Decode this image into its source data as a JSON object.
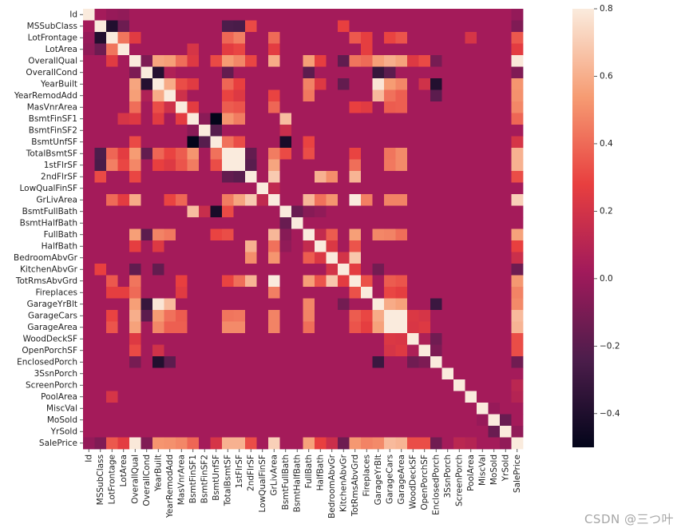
{
  "chart_data": {
    "type": "heatmap",
    "title": "",
    "variables": [
      "Id",
      "MSSubClass",
      "LotFrontage",
      "LotArea",
      "OverallQual",
      "OverallCond",
      "YearBuilt",
      "YearRemodAdd",
      "MasVnrArea",
      "BsmtFinSF1",
      "BsmtFinSF2",
      "BsmtUnfSF",
      "TotalBsmtSF",
      "1stFlrSF",
      "2ndFlrSF",
      "LowQualFinSF",
      "GrLivArea",
      "BsmtFullBath",
      "BsmtHalfBath",
      "FullBath",
      "HalfBath",
      "BedroomAbvGr",
      "KitchenAbvGr",
      "TotRmsAbvGrd",
      "Fireplaces",
      "GarageYrBlt",
      "GarageCars",
      "GarageArea",
      "WoodDeckSF",
      "OpenPorchSF",
      "EnclosedPorch",
      "3SsnPorch",
      "ScreenPorch",
      "PoolArea",
      "MiscVal",
      "MoSold",
      "YrSold",
      "SalePrice"
    ],
    "correlations": {
      "Id|LotFrontage": -0.01,
      "Id|LotArea": -0.03,
      "Id|SalePrice": -0.02,
      "MSSubClass|LotFrontage": -0.39,
      "MSSubClass|LotArea": -0.14,
      "MSSubClass|OverallQual": 0.03,
      "MSSubClass|YearBuilt": 0.03,
      "MSSubClass|TotalBsmtSF": -0.24,
      "MSSubClass|1stFlrSF": -0.25,
      "MSSubClass|2ndFlrSF": 0.31,
      "MSSubClass|KitchenAbvGr": 0.28,
      "MSSubClass|SalePrice": -0.08,
      "LotFrontage|LotArea": 0.43,
      "LotFrontage|OverallQual": 0.25,
      "LotFrontage|TotalBsmtSF": 0.39,
      "LotFrontage|1stFlrSF": 0.46,
      "LotFrontage|GrLivArea": 0.4,
      "LotFrontage|TotRmsAbvGrd": 0.35,
      "LotFrontage|Fireplaces": 0.27,
      "LotFrontage|GarageCars": 0.29,
      "LotFrontage|GarageArea": 0.34,
      "LotFrontage|PoolArea": 0.21,
      "LotFrontage|SalePrice": 0.35,
      "LotArea|BsmtFinSF1": 0.21,
      "LotArea|TotalBsmtSF": 0.26,
      "LotArea|1stFlrSF": 0.3,
      "LotArea|GrLivArea": 0.26,
      "LotArea|Fireplaces": 0.27,
      "LotArea|SalePrice": 0.26,
      "OverallQual|OverallCond": -0.09,
      "OverallQual|YearBuilt": 0.57,
      "OverallQual|YearRemodAdd": 0.55,
      "OverallQual|MasVnrArea": 0.41,
      "OverallQual|BsmtFinSF1": 0.24,
      "OverallQual|BsmtUnfSF": 0.31,
      "OverallQual|TotalBsmtSF": 0.54,
      "OverallQual|1stFlrSF": 0.48,
      "OverallQual|2ndFlrSF": 0.3,
      "OverallQual|GrLivArea": 0.59,
      "OverallQual|FullBath": 0.55,
      "OverallQual|HalfBath": 0.27,
      "OverallQual|KitchenAbvGr": -0.18,
      "OverallQual|TotRmsAbvGrd": 0.43,
      "OverallQual|Fireplaces": 0.4,
      "OverallQual|GarageYrBlt": 0.55,
      "OverallQual|GarageCars": 0.6,
      "OverallQual|GarageArea": 0.56,
      "OverallQual|WoodDeckSF": 0.24,
      "OverallQual|OpenPorchSF": 0.31,
      "OverallQual|EnclosedPorch": -0.11,
      "OverallQual|SalePrice": 0.79,
      "OverallCond|YearBuilt": -0.38,
      "OverallCond|YearRemodAdd": 0.07,
      "OverallCond|TotalBsmtSF": -0.17,
      "OverallCond|FullBath": -0.19,
      "OverallCond|GarageYrBlt": -0.32,
      "OverallCond|GarageCars": -0.19,
      "OverallCond|SalePrice": -0.08,
      "YearBuilt|YearRemodAdd": 0.59,
      "YearBuilt|MasVnrArea": 0.32,
      "YearBuilt|BsmtFinSF1": 0.25,
      "YearBuilt|TotalBsmtSF": 0.39,
      "YearBuilt|1stFlrSF": 0.28,
      "YearBuilt|FullBath": 0.47,
      "YearBuilt|HalfBath": 0.24,
      "YearBuilt|KitchenAbvGr": -0.17,
      "YearBuilt|GarageYrBlt": 0.78,
      "YearBuilt|GarageCars": 0.54,
      "YearBuilt|GarageArea": 0.48,
      "YearBuilt|OpenPorchSF": 0.19,
      "YearBuilt|EnclosedPorch": -0.39,
      "YearBuilt|SalePrice": 0.52,
      "YearRemodAdd|MasVnrArea": 0.18,
      "YearRemodAdd|TotalBsmtSF": 0.29,
      "YearRemodAdd|1stFlrSF": 0.24,
      "YearRemodAdd|GrLivArea": 0.29,
      "YearRemodAdd|FullBath": 0.44,
      "YearRemodAdd|GarageYrBlt": 0.64,
      "YearRemodAdd|GarageCars": 0.42,
      "YearRemodAdd|GarageArea": 0.37,
      "YearRemodAdd|EnclosedPorch": -0.19,
      "YearRemodAdd|SalePrice": 0.51,
      "MasVnrArea|BsmtFinSF1": 0.26,
      "MasVnrArea|TotalBsmtSF": 0.36,
      "MasVnrArea|1stFlrSF": 0.34,
      "MasVnrArea|GrLivArea": 0.39,
      "MasVnrArea|TotRmsAbvGrd": 0.28,
      "MasVnrArea|Fireplaces": 0.25,
      "MasVnrArea|GarageCars": 0.36,
      "MasVnrArea|GarageArea": 0.37,
      "MasVnrArea|SalePrice": 0.48,
      "BsmtFinSF1|BsmtFinSF2": -0.05,
      "BsmtFinSF1|BsmtUnfSF": -0.5,
      "BsmtFinSF1|TotalBsmtSF": 0.52,
      "BsmtFinSF1|1stFlrSF": 0.45,
      "BsmtFinSF1|BsmtFullBath": 0.65,
      "BsmtFinSF1|SalePrice": 0.39,
      "BsmtFinSF2|BsmtUnfSF": -0.21,
      "BsmtFinSF2|BsmtFullBath": 0.16,
      "BsmtUnfSF|TotalBsmtSF": 0.42,
      "BsmtUnfSF|1stFlrSF": 0.32,
      "BsmtUnfSF|BsmtFullBath": -0.42,
      "BsmtUnfSF|FullBath": 0.29,
      "BsmtUnfSF|SalePrice": 0.21,
      "TotalBsmtSF|1stFlrSF": 0.82,
      "TotalBsmtSF|2ndFlrSF": -0.17,
      "TotalBsmtSF|GrLivArea": 0.45,
      "TotalBsmtSF|BsmtFullBath": 0.31,
      "TotalBsmtSF|FullBath": 0.32,
      "TotalBsmtSF|TotRmsAbvGrd": 0.29,
      "TotalBsmtSF|GarageCars": 0.43,
      "TotalBsmtSF|GarageArea": 0.49,
      "TotalBsmtSF|SalePrice": 0.61,
      "1stFlrSF|2ndFlrSF": -0.2,
      "1stFlrSF|GrLivArea": 0.57,
      "1stFlrSF|TotRmsAbvGrd": 0.41,
      "1stFlrSF|GarageCars": 0.44,
      "1stFlrSF|GarageArea": 0.49,
      "1stFlrSF|SalePrice": 0.61,
      "2ndFlrSF|GrLivArea": 0.69,
      "2ndFlrSF|HalfBath": 0.61,
      "2ndFlrSF|BedroomAbvGr": 0.5,
      "2ndFlrSF|TotRmsAbvGrd": 0.62,
      "2ndFlrSF|SalePrice": 0.32,
      "LowQualFinSF|GrLivArea": 0.13,
      "GrLivArea|FullBath": 0.63,
      "GrLivArea|HalfBath": 0.42,
      "GrLivArea|BedroomAbvGr": 0.52,
      "GrLivArea|TotRmsAbvGrd": 0.83,
      "GrLivArea|Fireplaces": 0.46,
      "GrLivArea|GarageCars": 0.47,
      "GrLivArea|GarageArea": 0.47,
      "GrLivArea|SalePrice": 0.71,
      "BsmtFullBath|BsmtHalfBath": -0.15,
      "BsmtFullBath|FullBath": -0.06,
      "BsmtFullBath|HalfBath": -0.03,
      "FullBath|HalfBath": 0.14,
      "FullBath|BedroomAbvGr": 0.36,
      "FullBath|TotRmsAbvGrd": 0.55,
      "FullBath|GarageYrBlt": 0.48,
      "FullBath|GarageCars": 0.47,
      "FullBath|GarageArea": 0.41,
      "FullBath|SalePrice": 0.56,
      "HalfBath|BedroomAbvGr": 0.23,
      "HalfBath|TotRmsAbvGrd": 0.34,
      "HalfBath|SalePrice": 0.28,
      "BedroomAbvGr|KitchenAbvGr": 0.2,
      "BedroomAbvGr|TotRmsAbvGrd": 0.68,
      "BedroomAbvGr|SalePrice": 0.17,
      "KitchenAbvGr|TotRmsAbvGrd": 0.26,
      "KitchenAbvGr|GarageYrBlt": -0.12,
      "KitchenAbvGr|SalePrice": -0.14,
      "TotRmsAbvGrd|Fireplaces": 0.33,
      "TotRmsAbvGrd|GarageCars": 0.36,
      "TotRmsAbvGrd|GarageArea": 0.34,
      "TotRmsAbvGrd|SalePrice": 0.53,
      "Fireplaces|GarageCars": 0.3,
      "Fireplaces|GarageArea": 0.27,
      "Fireplaces|SalePrice": 0.47,
      "GarageYrBlt|GarageCars": 0.59,
      "GarageYrBlt|GarageArea": 0.56,
      "GarageYrBlt|EnclosedPorch": -0.3,
      "GarageYrBlt|SalePrice": 0.49,
      "GarageCars|GarageArea": 0.88,
      "GarageCars|WoodDeckSF": 0.23,
      "GarageCars|OpenPorchSF": 0.21,
      "GarageCars|SalePrice": 0.64,
      "GarageArea|WoodDeckSF": 0.22,
      "GarageArea|OpenPorchSF": 0.24,
      "GarageArea|SalePrice": 0.62,
      "WoodDeckSF|OpenPorchSF": 0.06,
      "WoodDeckSF|EnclosedPorch": -0.13,
      "WoodDeckSF|SalePrice": 0.32,
      "OpenPorchSF|EnclosedPorch": -0.09,
      "OpenPorchSF|SalePrice": 0.32,
      "EnclosedPorch|SalePrice": -0.13,
      "ScreenPorch|SalePrice": 0.11,
      "PoolArea|SalePrice": 0.09,
      "MiscVal|MoSold": -0.01,
      "MoSold|YrSold": -0.15,
      "YrSold|SalePrice": -0.03
    },
    "colorbar": {
      "min": -0.5,
      "max": 0.8,
      "ticks": [
        -0.4,
        -0.2,
        0.0,
        0.2,
        0.4,
        0.6,
        0.8
      ],
      "tick_labels": [
        "−0.4",
        "−0.2",
        "0.0",
        "0.2",
        "0.4",
        "0.6",
        "0.8"
      ]
    },
    "colormap_stops": [
      "#03051a",
      "#4c1d4b",
      "#a11a5b",
      "#e83f3f",
      "#f69c73",
      "#faebdd"
    ]
  },
  "watermark": "CSDN @三つ叶"
}
